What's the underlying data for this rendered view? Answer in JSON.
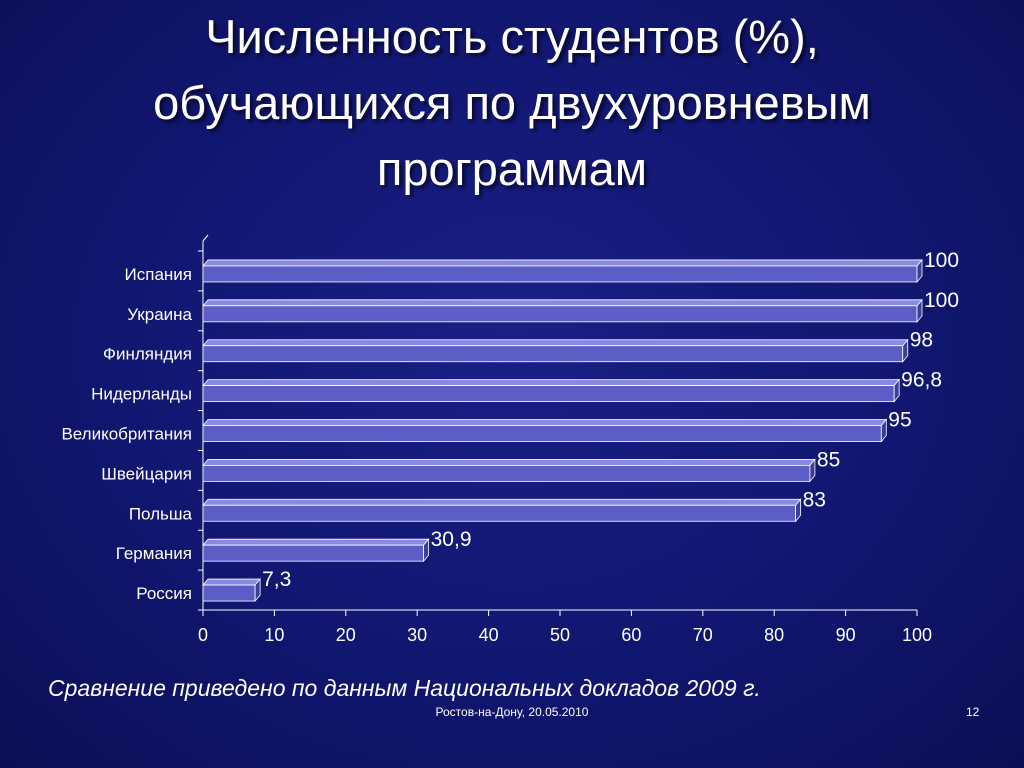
{
  "slide": {
    "title_line1": "Численность студентов (%),",
    "title_line2": "обучающихся по двухуровневым",
    "title_line3": "программам",
    "note": "Сравнение приведено по данным Национальных докладов 2009 г.",
    "footer": "Ростов-на-Дону, 20.05.2010",
    "page_number": "12"
  },
  "colors": {
    "background": "#121772",
    "bar_front": "#5d5dc6",
    "bar_top": "#8a8ae0",
    "bar_side": "#3d3d98",
    "bar_outline": "#ffffff",
    "text": "#ffffff"
  },
  "chart_data": {
    "type": "bar",
    "orientation": "horizontal",
    "style": "3d",
    "categories": [
      "Испания",
      "Украина",
      "Финляндия",
      "Нидерланды",
      "Великобритания",
      "Швейцария",
      "Польша",
      "Германия",
      "Россия"
    ],
    "values": [
      100,
      100,
      98,
      96.8,
      95,
      85,
      83,
      30.9,
      7.3
    ],
    "value_labels": [
      "100",
      "100",
      "98",
      "96,8",
      "95",
      "85",
      "83",
      "30,9",
      "7,3"
    ],
    "xlim": [
      0,
      100
    ],
    "xticks": [
      0,
      10,
      20,
      30,
      40,
      50,
      60,
      70,
      80,
      90,
      100
    ],
    "grid": false,
    "legend": false
  }
}
